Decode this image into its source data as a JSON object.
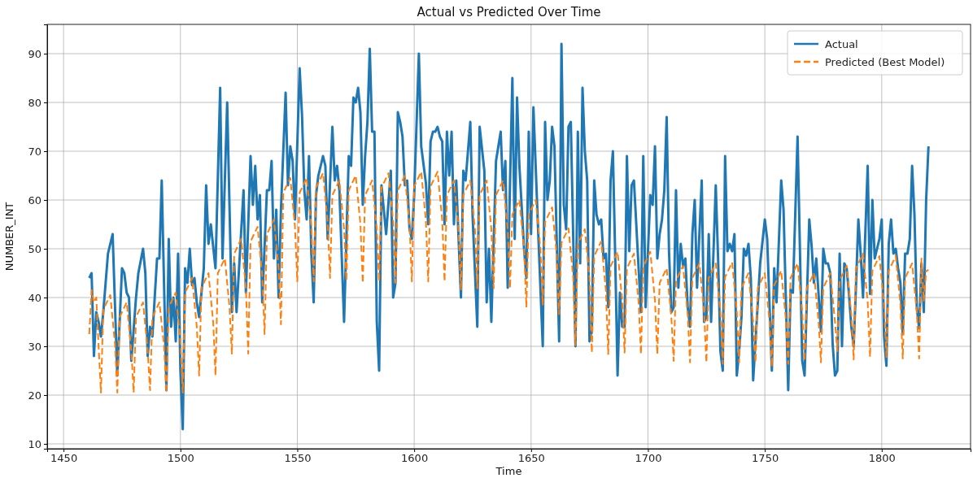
{
  "chart_data": {
    "type": "line",
    "title": "Actual vs Predicted Over Time",
    "xlabel": "Time",
    "ylabel": "NUMBER_INT",
    "xlim": [
      1443,
      1838
    ],
    "ylim": [
      9,
      96
    ],
    "xticks": [
      1450,
      1500,
      1550,
      1600,
      1650,
      1700,
      1750,
      1800
    ],
    "yticks": [
      10,
      20,
      30,
      40,
      50,
      60,
      70,
      80,
      90
    ],
    "grid": true,
    "legend": "top right",
    "series": [
      {
        "name": "Actual",
        "color": "#1f77b4",
        "line_style": "solid",
        "x": [
          1461,
          1462,
          1463,
          1464,
          1465,
          1466,
          1467,
          1469,
          1471,
          1473,
          1475,
          1476,
          1477,
          1478,
          1479,
          1481,
          1482,
          1484,
          1485,
          1486,
          1487,
          1488,
          1490,
          1491,
          1492,
          1494,
          1495,
          1496,
          1497,
          1498,
          1499,
          1500,
          1501,
          1502,
          1503,
          1504,
          1505,
          1506,
          1507,
          1508,
          1510,
          1511,
          1512,
          1513,
          1515,
          1517,
          1518,
          1520,
          1522,
          1523,
          1524,
          1527,
          1528,
          1530,
          1531,
          1532,
          1533,
          1534,
          1535,
          1537,
          1538,
          1539,
          1540,
          1541,
          1542,
          1543,
          1545,
          1546,
          1547,
          1548,
          1549,
          1551,
          1552,
          1553,
          1554,
          1555,
          1556,
          1557,
          1558,
          1559,
          1561,
          1562,
          1563,
          1565,
          1566,
          1567,
          1568,
          1570,
          1572,
          1573,
          1574,
          1575,
          1576,
          1577,
          1578,
          1579,
          1580,
          1581,
          1582,
          1583,
          1584,
          1585,
          1586,
          1588,
          1590,
          1591,
          1592,
          1593,
          1594,
          1595,
          1596,
          1597,
          1598,
          1599,
          1600,
          1602,
          1603,
          1605,
          1606,
          1607,
          1608,
          1609,
          1610,
          1611,
          1612,
          1613,
          1614,
          1615,
          1616,
          1617,
          1618,
          1620,
          1621,
          1622,
          1624,
          1625,
          1627,
          1628,
          1630,
          1631,
          1632,
          1633,
          1635,
          1637,
          1638,
          1639,
          1640,
          1642,
          1643,
          1644,
          1645,
          1647,
          1648,
          1649,
          1650,
          1651,
          1653,
          1655,
          1656,
          1657,
          1658,
          1659,
          1660,
          1662,
          1663,
          1664,
          1665,
          1666,
          1667,
          1669,
          1670,
          1671,
          1672,
          1673,
          1674,
          1675,
          1676,
          1677,
          1678,
          1679,
          1680,
          1681,
          1682,
          1683,
          1684,
          1685,
          1686,
          1687,
          1688,
          1689,
          1690,
          1691,
          1692,
          1693,
          1694,
          1696,
          1697,
          1698,
          1699,
          1701,
          1702,
          1703,
          1704,
          1705,
          1706,
          1707,
          1708,
          1709,
          1710,
          1711,
          1712,
          1713,
          1714,
          1715,
          1716,
          1717,
          1718,
          1719,
          1720,
          1721,
          1723,
          1724,
          1725,
          1726,
          1727,
          1729,
          1730,
          1731,
          1732,
          1733,
          1734,
          1735,
          1736,
          1737,
          1738,
          1739,
          1740,
          1741,
          1742,
          1743,
          1744,
          1745,
          1748,
          1750,
          1751,
          1753,
          1754,
          1755,
          1757,
          1758,
          1760,
          1761,
          1762,
          1764,
          1766,
          1767,
          1769,
          1770,
          1771,
          1772,
          1774,
          1775,
          1776,
          1777,
          1778,
          1779,
          1780,
          1781,
          1782,
          1783,
          1784,
          1785,
          1786,
          1787,
          1788,
          1789,
          1790,
          1791,
          1792,
          1794,
          1795,
          1796,
          1797,
          1798,
          1799,
          1800,
          1801,
          1802,
          1803,
          1804,
          1805,
          1806,
          1807,
          1808,
          1809,
          1810,
          1811,
          1812,
          1813,
          1814,
          1815,
          1816,
          1817,
          1818,
          1819,
          1820
        ],
        "values": [
          44,
          45,
          28,
          37,
          35,
          32,
          37,
          49,
          53,
          24,
          46,
          45,
          41,
          40,
          27,
          40,
          45,
          50,
          45,
          28,
          34,
          32,
          48,
          48,
          64,
          21,
          52,
          34,
          40,
          31,
          49,
          25,
          13,
          46,
          43,
          50,
          42.5,
          44,
          39,
          36,
          46,
          63,
          51,
          55,
          46,
          83,
          48,
          80,
          37,
          47,
          37,
          62,
          41,
          69,
          59,
          67,
          56,
          61,
          39,
          62,
          62,
          68,
          48,
          58,
          40,
          58,
          82,
          63,
          71,
          68,
          56,
          87,
          77.5,
          62,
          56,
          69,
          49,
          39,
          61,
          65,
          69,
          67,
          52,
          75,
          64,
          67,
          62,
          35,
          69,
          67,
          81,
          80,
          83,
          78,
          59,
          69,
          76,
          91,
          74,
          74,
          35,
          25,
          63,
          53,
          66,
          40,
          43,
          78,
          76,
          73,
          63,
          64,
          54,
          52,
          61,
          90,
          71,
          63.5,
          55,
          72,
          74,
          74,
          75,
          73,
          72,
          55,
          74,
          65,
          74,
          55,
          64,
          40,
          66,
          64,
          76,
          56.5,
          34,
          75,
          66,
          39,
          50,
          35,
          68,
          74,
          62,
          68,
          42,
          85,
          52,
          81,
          67,
          50,
          44,
          74,
          53,
          79,
          54,
          30,
          76,
          60,
          64,
          75,
          71,
          31,
          92,
          59,
          54,
          75,
          76,
          30,
          74,
          47,
          83,
          70,
          64,
          31,
          33,
          64,
          57,
          55,
          56,
          48,
          49,
          38,
          64,
          70,
          48,
          24,
          41,
          34,
          34,
          69,
          49.5,
          63,
          64,
          46,
          37,
          69,
          38,
          61,
          59,
          71,
          48,
          53,
          56,
          62,
          77,
          49.5,
          37,
          38,
          62,
          42,
          51,
          46.5,
          48,
          38,
          34,
          53,
          60,
          42,
          64,
          35,
          36,
          53,
          35,
          63,
          48,
          29,
          25,
          69,
          49.5,
          51,
          49.5,
          53,
          24,
          29,
          36,
          50,
          48.6,
          51,
          44,
          23,
          47,
          56,
          52,
          25,
          46,
          39,
          64,
          58,
          21,
          41.6,
          41,
          73,
          27,
          24,
          56,
          50.6,
          43,
          48,
          33,
          50,
          47,
          47,
          45,
          30.5,
          24,
          25,
          49,
          30,
          47,
          46,
          40.7,
          34,
          30,
          42.5,
          56,
          49,
          40,
          67,
          40.7,
          60,
          48,
          50,
          52,
          56,
          32,
          26,
          51,
          56,
          49,
          50,
          46,
          43,
          32.5,
          49,
          49,
          52,
          67,
          57,
          38,
          33.7,
          47,
          37,
          60,
          71
        ]
      },
      {
        "name": "Predicted (Best Model)",
        "color": "#ff7f0e",
        "line_style": "dashed",
        "x": [
          1461,
          1462,
          1463,
          1464,
          1465,
          1466,
          1467,
          1470,
          1472,
          1473,
          1474,
          1477,
          1479,
          1480,
          1481,
          1484,
          1486,
          1487,
          1488,
          1491,
          1493,
          1494,
          1495,
          1498,
          1500,
          1501,
          1502,
          1505,
          1507,
          1508,
          1509,
          1512,
          1514,
          1515,
          1516,
          1519,
          1521,
          1522,
          1523,
          1526,
          1528,
          1529,
          1530,
          1533,
          1535,
          1536,
          1537,
          1540,
          1542,
          1543,
          1544,
          1547,
          1549,
          1550,
          1551,
          1554,
          1556,
          1557,
          1558,
          1561,
          1563,
          1564,
          1565,
          1568,
          1570,
          1571,
          1572,
          1575,
          1577,
          1578,
          1579,
          1582,
          1584,
          1585,
          1586,
          1589,
          1591,
          1592,
          1593,
          1596,
          1598,
          1599,
          1600,
          1603,
          1605,
          1606,
          1607,
          1610,
          1612,
          1613,
          1614,
          1617,
          1619,
          1620,
          1621,
          1624,
          1626,
          1627,
          1628,
          1631,
          1633,
          1634,
          1635,
          1638,
          1640,
          1641,
          1642,
          1645,
          1647,
          1648,
          1649,
          1652,
          1654,
          1655,
          1656,
          1659,
          1661,
          1662,
          1663,
          1666,
          1668,
          1669,
          1670,
          1673,
          1675,
          1676,
          1677,
          1680,
          1682,
          1683,
          1684,
          1687,
          1689,
          1690,
          1691,
          1694,
          1696,
          1697,
          1698,
          1701,
          1703,
          1704,
          1705,
          1708,
          1710,
          1711,
          1712,
          1715,
          1717,
          1718,
          1719,
          1722,
          1724,
          1725,
          1726,
          1729,
          1731,
          1732,
          1733,
          1736,
          1738,
          1739,
          1740,
          1743,
          1745,
          1746,
          1747,
          1750,
          1752,
          1753,
          1754,
          1757,
          1759,
          1760,
          1761,
          1764,
          1766,
          1767,
          1768,
          1771,
          1773,
          1774,
          1775,
          1778,
          1780,
          1781,
          1782,
          1785,
          1787,
          1788,
          1789,
          1792,
          1794,
          1795,
          1796,
          1799,
          1801,
          1802,
          1803,
          1806,
          1808,
          1809,
          1810,
          1813,
          1815,
          1816,
          1817,
          1818,
          1819,
          1820
        ],
        "values": [
          32.5,
          41.5,
          39,
          40,
          30,
          20.5,
          37.5,
          40.5,
          30.5,
          20.5,
          36,
          39,
          29,
          20.5,
          36,
          39,
          29,
          21,
          36,
          39,
          30,
          20.5,
          38,
          41,
          31,
          20.5,
          41,
          44,
          34,
          24,
          42,
          45,
          35,
          24,
          45,
          48,
          38,
          28.5,
          49,
          52,
          42,
          28.5,
          51.5,
          54.5,
          44.5,
          32.5,
          53,
          56,
          46,
          34.5,
          61.5,
          64.5,
          54.5,
          43.3,
          61.5,
          64.5,
          54.5,
          43.3,
          62.5,
          65.5,
          55.5,
          44,
          61,
          64,
          54,
          43.5,
          62,
          65,
          55,
          43,
          61,
          64,
          54,
          43.3,
          62.5,
          65.5,
          55.5,
          43,
          62,
          65,
          55,
          43.3,
          62.8,
          65.8,
          55.8,
          43.3,
          62.8,
          65.8,
          55.8,
          43.3,
          61,
          64,
          54,
          41.5,
          61,
          64,
          54,
          41.9,
          61,
          64,
          54,
          41.9,
          61,
          64,
          54,
          41.9,
          57,
          60,
          50,
          38,
          57,
          60,
          50,
          38.4,
          55.5,
          58.5,
          48.5,
          36.6,
          51.2,
          54.2,
          44.2,
          30.2,
          51,
          54,
          44,
          28.7,
          48.5,
          51.5,
          41.5,
          28.4,
          46.4,
          49.4,
          39.4,
          28.7,
          46,
          49,
          39,
          28.4,
          46.4,
          49.4,
          39.4,
          28.4,
          43,
          46,
          36,
          27,
          43.5,
          46.5,
          36.5,
          26.7,
          44,
          47,
          37,
          26.7,
          44,
          47,
          37,
          26.4,
          44.2,
          47.2,
          37.2,
          26.7,
          42,
          45,
          35,
          26.7,
          42,
          45,
          35,
          25.8,
          42.5,
          45.5,
          35.5,
          26.4,
          44,
          47,
          37,
          27,
          42,
          45,
          35,
          26.7,
          42,
          45,
          35,
          29,
          43.5,
          46.5,
          36.5,
          27.3,
          46,
          49,
          39,
          27.8,
          45.5,
          48.5,
          38.5,
          27.8,
          45.5,
          48.5,
          38.5,
          27.5,
          44,
          47,
          37,
          27.5,
          48,
          39.2,
          45.4,
          45.7
        ]
      }
    ]
  }
}
